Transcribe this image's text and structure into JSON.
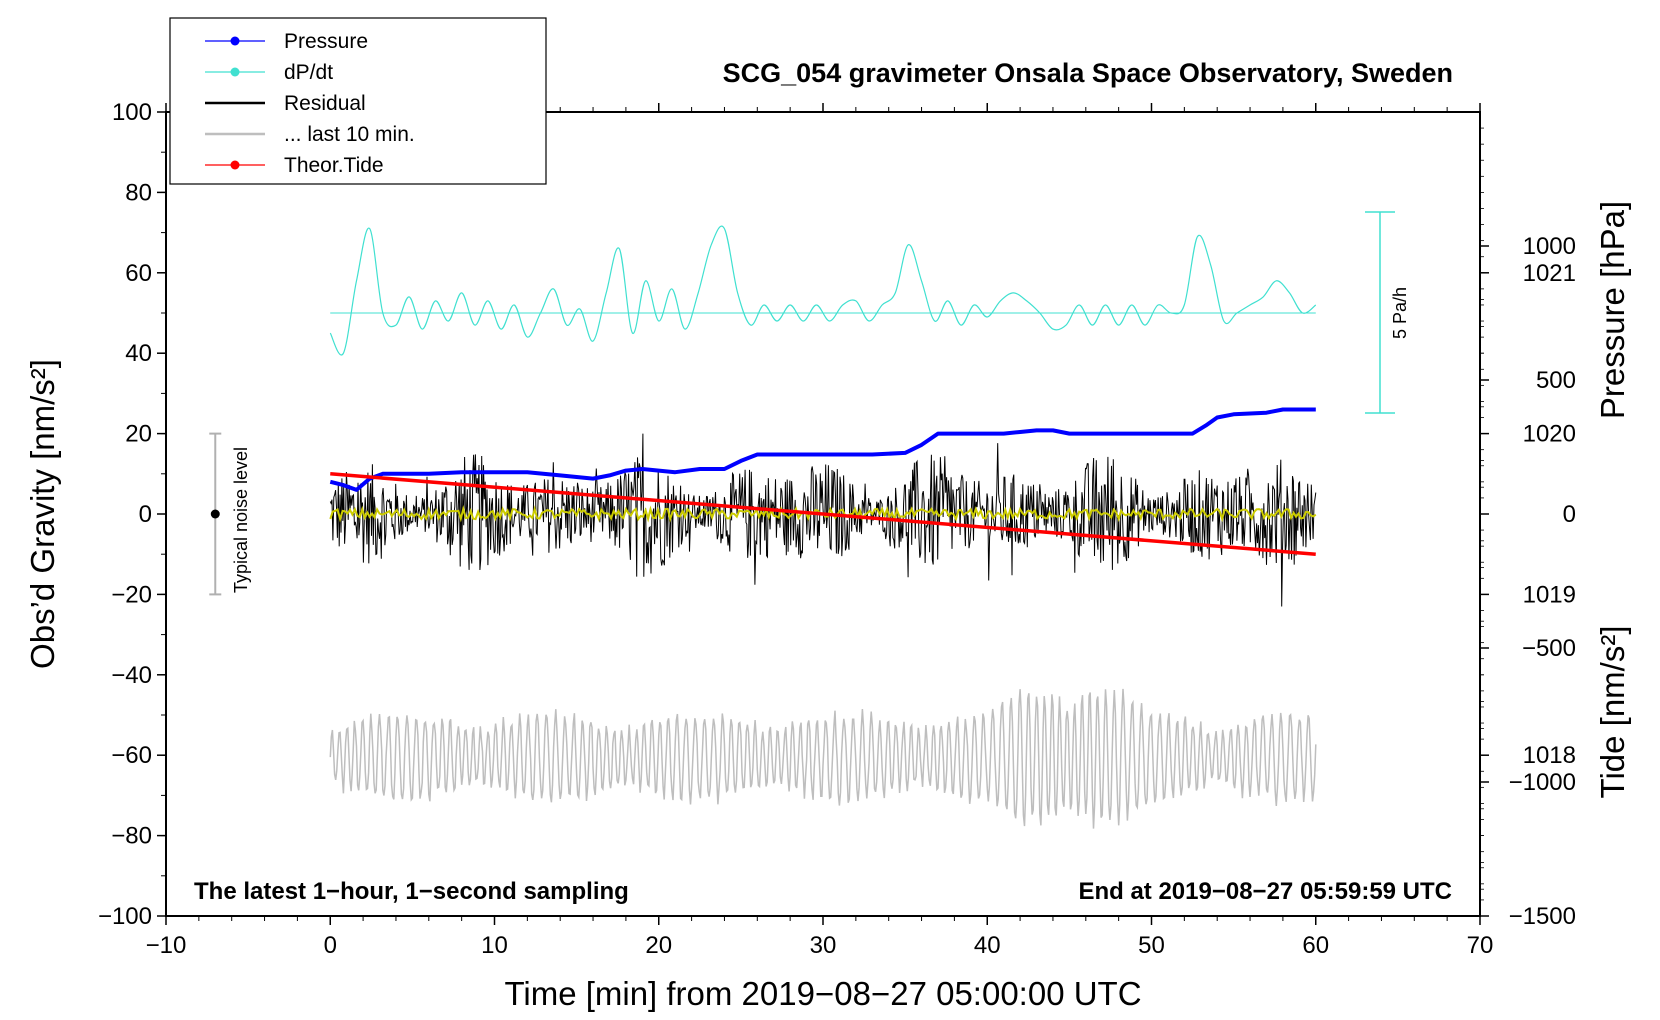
{
  "chart_data": {
    "type": "line",
    "title": "SCG_054 gravimeter Onsala Space Observatory, Sweden",
    "xlabel": "Time [min] from 2019−08−27 05:00:00 UTC",
    "ylabel_left": "Obs’d Gravity [nm/s²]",
    "ylabel_right_top": "Pressure [hPa]",
    "ylabel_right_bottom": "Tide [nm/s²]",
    "xlim": [
      -10,
      70
    ],
    "ylim": [
      -100,
      100
    ],
    "x_ticks": [
      "−10",
      "0",
      "10",
      "20",
      "30",
      "40",
      "50",
      "60",
      "70"
    ],
    "y_ticks": [
      "−100",
      "−80",
      "−60",
      "−40",
      "−20",
      "0",
      "20",
      "40",
      "60",
      "80",
      "100"
    ],
    "pressure_ticks": [
      "1018",
      "1019",
      "1020",
      "1021"
    ],
    "tide_ticks": [
      "−1500",
      "−1000",
      "−500",
      "0",
      "500",
      "1000"
    ],
    "pressure_range_hPa": [
      1017.0,
      1022.0
    ],
    "tide_range": [
      -1500,
      1500
    ],
    "note_left": "The latest 1−hour, 1−second sampling",
    "note_right": "End at 2019−08−27 05:59:59 UTC",
    "noise_label": "Typical noise level",
    "noise_bar": {
      "x": -7,
      "center": 0,
      "half_range": 20
    },
    "scale_bar_label": "5 Pa/h",
    "legend": [
      {
        "label": "Pressure",
        "color": "#0000ff",
        "marker": true
      },
      {
        "label": "dP/dt",
        "color": "#40e0d0",
        "marker": true
      },
      {
        "label": "Residual",
        "color": "#000000",
        "marker": false
      },
      {
        "label": "... last 10 min.",
        "color": "#bebebe",
        "marker": false
      },
      {
        "label": "Theor.Tide",
        "color": "#ff0000",
        "marker": true
      }
    ],
    "series": [
      {
        "name": "Pressure",
        "color": "#0000ff",
        "unit": "hPa",
        "x": [
          0,
          0.8,
          1.6,
          2.4,
          3.2,
          6,
          8,
          10,
          12,
          14,
          16,
          17,
          18,
          19,
          21,
          22.5,
          24,
          25,
          26,
          28,
          30,
          33,
          35,
          36,
          37,
          40,
          41,
          42,
          43,
          44,
          45,
          50,
          52.5,
          53.3,
          54,
          55,
          57,
          58,
          59,
          60
        ],
        "values": [
          1019.7,
          1019.68,
          1019.65,
          1019.72,
          1019.75,
          1019.75,
          1019.76,
          1019.76,
          1019.76,
          1019.74,
          1019.72,
          1019.74,
          1019.77,
          1019.78,
          1019.76,
          1019.78,
          1019.78,
          1019.83,
          1019.87,
          1019.87,
          1019.87,
          1019.87,
          1019.88,
          1019.93,
          1020.0,
          1020.0,
          1020.0,
          1020.01,
          1020.02,
          1020.02,
          1020.0,
          1020.0,
          1020.0,
          1020.05,
          1020.1,
          1020.12,
          1020.13,
          1020.15,
          1020.15,
          1020.15
        ]
      },
      {
        "name": "dP/dt",
        "color": "#40e0d0",
        "baseline": 50,
        "anchors_x": [
          0,
          0.8,
          1.6,
          2.4,
          3.2,
          4.0,
          4.8,
          5.6,
          6.4,
          7.2,
          8.0,
          8.8,
          9.6,
          10.4,
          11.2,
          12.0,
          12.8,
          13.6,
          14.4,
          15.2,
          16.0,
          16.8,
          17.6,
          18.4,
          19.2,
          20.0,
          20.8,
          21.6,
          22.4,
          23.2,
          24.0,
          24.8,
          25.6,
          26.4,
          27.2,
          28.0,
          28.8,
          29.6,
          30.4,
          31.2,
          32.0,
          32.8,
          33.6,
          34.4,
          35.2,
          36.0,
          36.8,
          37.6,
          38.4,
          39.2,
          40.0,
          40.8,
          41.6,
          42.4,
          43.2,
          44.0,
          44.8,
          45.6,
          46.4,
          47.2,
          48.0,
          48.8,
          49.6,
          50.4,
          51.2,
          52.0,
          52.8,
          53.6,
          54.4,
          55.2,
          56.0,
          56.8,
          57.6,
          58.4,
          59.2,
          60.0
        ],
        "anchors_y": [
          45,
          40,
          58,
          71,
          50,
          47,
          54,
          46,
          53,
          48,
          55,
          47,
          53,
          46,
          52,
          44,
          50,
          56,
          47,
          51,
          43,
          55,
          66,
          45,
          58,
          48,
          56,
          46,
          55,
          67,
          71,
          55,
          47,
          52,
          48,
          52,
          48,
          52,
          48,
          52,
          53,
          48,
          52,
          55,
          67,
          58,
          48,
          53,
          47,
          52,
          49,
          53,
          55,
          53,
          50,
          46,
          47,
          52,
          47,
          52,
          47,
          52,
          47,
          52,
          50,
          52,
          69,
          62,
          48,
          50,
          52,
          54,
          58,
          55,
          50,
          52
        ]
      },
      {
        "name": "Residual",
        "color": "#000000",
        "x_range": [
          0,
          60
        ],
        "typical_amplitude": 10,
        "max_amplitude": 20
      },
      {
        "name": "Residual (smoothed)",
        "color": "#cccc00",
        "x_range": [
          0,
          60
        ],
        "values_approx": 0
      },
      {
        "name": "... last 10 min.",
        "color": "#bebebe",
        "x_range": [
          0,
          60
        ],
        "center": -60.5,
        "typical_amplitude": 9,
        "max_amplitude": 22
      },
      {
        "name": "Theor.Tide",
        "color": "#ff0000",
        "unit": "nm/s²",
        "x": [
          0,
          60
        ],
        "values": [
          150,
          -150
        ]
      }
    ]
  }
}
